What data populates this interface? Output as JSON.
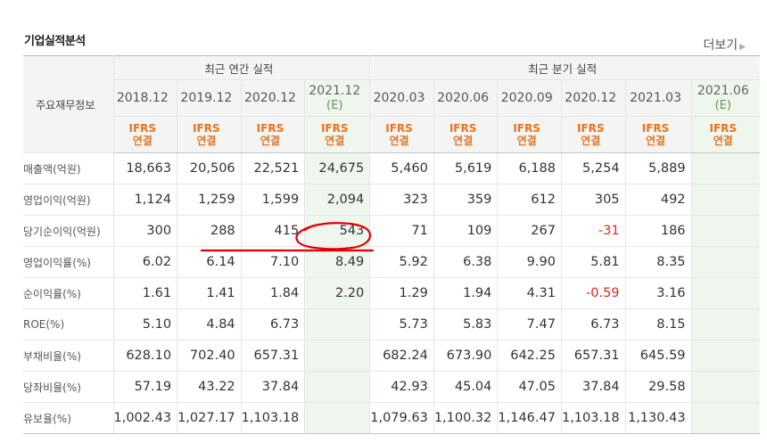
{
  "section": {
    "title": "기업실적분석",
    "more_label": "더보기"
  },
  "table": {
    "row_header_label": "주요재무정보",
    "annual_group_label": "최근 연간 실적",
    "quarter_group_label": "최근 분기 실적",
    "periods": [
      "2018.12",
      "2019.12",
      "2020.12",
      "2021.12",
      "2020.03",
      "2020.06",
      "2020.09",
      "2020.12",
      "2021.03",
      "2021.06"
    ],
    "estimate_mark": "(E)",
    "standard_line1": "IFRS",
    "standard_line2": "연결",
    "rows": [
      {
        "label": "매출액(억원)",
        "values": [
          "18,663",
          "20,506",
          "22,521",
          "24,675",
          "5,460",
          "5,619",
          "6,188",
          "5,254",
          "5,889",
          ""
        ]
      },
      {
        "label": "영업이익(억원)",
        "values": [
          "1,124",
          "1,259",
          "1,599",
          "2,094",
          "323",
          "359",
          "612",
          "305",
          "492",
          ""
        ]
      },
      {
        "label": "당기순이익(억원)",
        "values": [
          "300",
          "288",
          "415",
          "543",
          "71",
          "109",
          "267",
          "-31",
          "186",
          ""
        ]
      },
      {
        "label": "영업이익률(%)",
        "values": [
          "6.02",
          "6.14",
          "7.10",
          "8.49",
          "5.92",
          "6.38",
          "9.90",
          "5.81",
          "8.35",
          ""
        ]
      },
      {
        "label": "순이익률(%)",
        "values": [
          "1.61",
          "1.41",
          "1.84",
          "2.20",
          "1.29",
          "1.94",
          "4.31",
          "-0.59",
          "3.16",
          ""
        ]
      },
      {
        "label": "ROE(%)",
        "values": [
          "5.10",
          "4.84",
          "6.73",
          "",
          "5.73",
          "5.83",
          "7.47",
          "6.73",
          "8.15",
          ""
        ]
      },
      {
        "label": "부채비율(%)",
        "values": [
          "628.10",
          "702.40",
          "657.31",
          "",
          "682.24",
          "673.90",
          "642.25",
          "657.31",
          "645.59",
          ""
        ]
      },
      {
        "label": "당좌비율(%)",
        "values": [
          "57.19",
          "43.22",
          "37.84",
          "",
          "42.93",
          "45.04",
          "47.05",
          "37.84",
          "29.58",
          ""
        ]
      },
      {
        "label": "유보율(%)",
        "values": [
          "1,002.43",
          "1,027.17",
          "1,103.18",
          "",
          "1,079.63",
          "1,100.32",
          "1,146.47",
          "1,103.18",
          "1,130.43",
          ""
        ]
      }
    ]
  },
  "colors": {
    "estimate_bg": "#eef6ee",
    "standard_text": "#e8731a",
    "negative_text": "#e1261c",
    "annotation_red": "#e00000"
  }
}
